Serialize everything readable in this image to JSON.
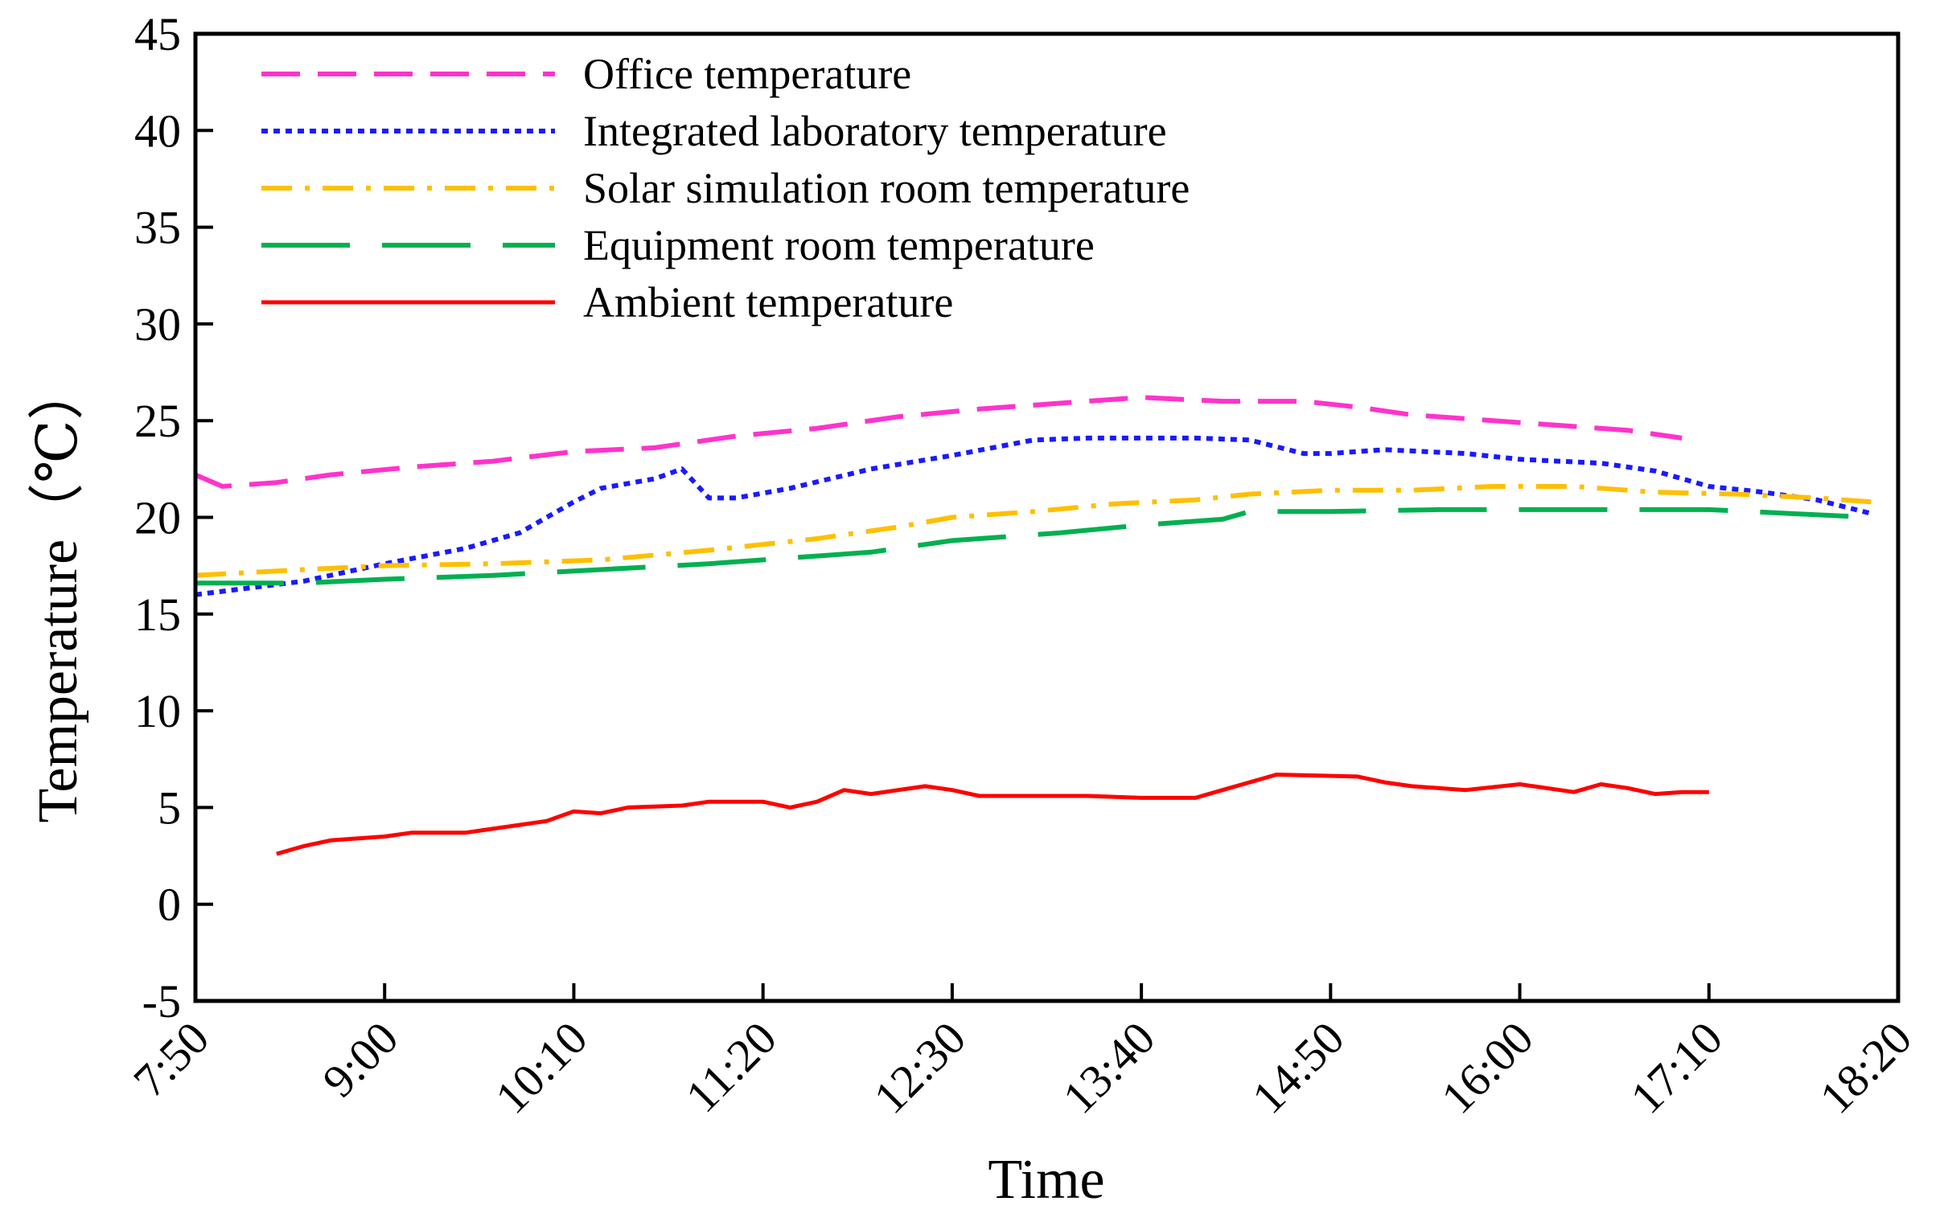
{
  "chart_data": {
    "type": "line",
    "title": "",
    "xlabel": "Time",
    "ylabel": "Temperature（℃）",
    "ylim": [
      -5,
      45
    ],
    "yticks": [
      -5,
      0,
      5,
      10,
      15,
      20,
      25,
      30,
      35,
      40,
      45
    ],
    "xlim_minutes": [
      470,
      1100
    ],
    "xticks": [
      "7:50",
      "9:00",
      "10:10",
      "11:20",
      "12:30",
      "13:40",
      "14:50",
      "16:00",
      "17:10",
      "18:20"
    ],
    "legend_position": "top-left",
    "series": [
      {
        "name": "Office temperature",
        "color": "#ff33cc",
        "style": "dashed",
        "points": [
          [
            "7:50",
            22.2
          ],
          [
            "8:00",
            21.6
          ],
          [
            "8:20",
            21.8
          ],
          [
            "8:40",
            22.2
          ],
          [
            "9:10",
            22.6
          ],
          [
            "9:40",
            22.9
          ],
          [
            "10:10",
            23.4
          ],
          [
            "10:40",
            23.6
          ],
          [
            "11:10",
            24.2
          ],
          [
            "11:40",
            24.6
          ],
          [
            "12:10",
            25.2
          ],
          [
            "12:40",
            25.6
          ],
          [
            "13:10",
            25.9
          ],
          [
            "13:40",
            26.2
          ],
          [
            "14:10",
            26.0
          ],
          [
            "14:40",
            26.0
          ],
          [
            "15:00",
            25.7
          ],
          [
            "15:20",
            25.3
          ],
          [
            "15:40",
            25.1
          ],
          [
            "16:00",
            24.9
          ],
          [
            "16:20",
            24.7
          ],
          [
            "16:40",
            24.5
          ],
          [
            "17:00",
            24.1
          ]
        ]
      },
      {
        "name": "Integrated laboratory temperature",
        "color": "#1a1aff",
        "style": "dotted",
        "points": [
          [
            "7:50",
            16.0
          ],
          [
            "8:30",
            16.7
          ],
          [
            "9:00",
            17.6
          ],
          [
            "9:30",
            18.4
          ],
          [
            "9:50",
            19.2
          ],
          [
            "10:10",
            20.8
          ],
          [
            "10:20",
            21.5
          ],
          [
            "10:40",
            22.0
          ],
          [
            "10:50",
            22.5
          ],
          [
            "11:00",
            21.0
          ],
          [
            "11:10",
            21.0
          ],
          [
            "11:30",
            21.5
          ],
          [
            "12:00",
            22.5
          ],
          [
            "12:30",
            23.2
          ],
          [
            "13:00",
            24.0
          ],
          [
            "13:20",
            24.1
          ],
          [
            "13:40",
            24.1
          ],
          [
            "14:00",
            24.1
          ],
          [
            "14:20",
            24.0
          ],
          [
            "14:40",
            23.3
          ],
          [
            "14:50",
            23.3
          ],
          [
            "15:10",
            23.5
          ],
          [
            "15:40",
            23.3
          ],
          [
            "16:00",
            23.0
          ],
          [
            "16:30",
            22.8
          ],
          [
            "16:50",
            22.4
          ],
          [
            "17:10",
            21.6
          ],
          [
            "17:30",
            21.3
          ],
          [
            "17:50",
            20.9
          ],
          [
            "18:10",
            20.2
          ]
        ]
      },
      {
        "name": "Solar simulation room temperature",
        "color": "#ffbf00",
        "style": "dashdot",
        "points": [
          [
            "7:50",
            17.0
          ],
          [
            "8:30",
            17.3
          ],
          [
            "9:00",
            17.5
          ],
          [
            "9:40",
            17.6
          ],
          [
            "10:20",
            17.8
          ],
          [
            "11:00",
            18.3
          ],
          [
            "11:40",
            18.9
          ],
          [
            "12:10",
            19.5
          ],
          [
            "12:30",
            20.0
          ],
          [
            "13:00",
            20.3
          ],
          [
            "13:30",
            20.7
          ],
          [
            "14:00",
            20.9
          ],
          [
            "14:20",
            21.2
          ],
          [
            "14:50",
            21.4
          ],
          [
            "15:20",
            21.4
          ],
          [
            "15:50",
            21.6
          ],
          [
            "16:20",
            21.6
          ],
          [
            "16:50",
            21.3
          ],
          [
            "17:20",
            21.2
          ],
          [
            "17:50",
            21.0
          ],
          [
            "18:10",
            20.8
          ]
        ]
      },
      {
        "name": "Equipment room temperature",
        "color": "#00b050",
        "style": "longdash",
        "points": [
          [
            "7:50",
            16.6
          ],
          [
            "8:30",
            16.6
          ],
          [
            "9:00",
            16.8
          ],
          [
            "9:40",
            17.0
          ],
          [
            "10:20",
            17.3
          ],
          [
            "11:00",
            17.6
          ],
          [
            "11:30",
            17.9
          ],
          [
            "12:00",
            18.2
          ],
          [
            "12:30",
            18.8
          ],
          [
            "13:10",
            19.2
          ],
          [
            "13:40",
            19.6
          ],
          [
            "14:10",
            19.9
          ],
          [
            "14:20",
            20.3
          ],
          [
            "14:50",
            20.3
          ],
          [
            "15:30",
            20.4
          ],
          [
            "16:10",
            20.4
          ],
          [
            "16:40",
            20.4
          ],
          [
            "17:10",
            20.4
          ],
          [
            "17:40",
            20.2
          ],
          [
            "18:10",
            20.0
          ]
        ]
      },
      {
        "name": "Ambient temperature",
        "color": "#ff0000",
        "style": "solid",
        "points": [
          [
            "8:20",
            2.6
          ],
          [
            "8:30",
            3.0
          ],
          [
            "8:40",
            3.3
          ],
          [
            "9:00",
            3.5
          ],
          [
            "9:10",
            3.7
          ],
          [
            "9:30",
            3.7
          ],
          [
            "9:40",
            3.9
          ],
          [
            "10:00",
            4.3
          ],
          [
            "10:10",
            4.8
          ],
          [
            "10:20",
            4.7
          ],
          [
            "10:30",
            5.0
          ],
          [
            "10:50",
            5.1
          ],
          [
            "11:00",
            5.3
          ],
          [
            "11:20",
            5.3
          ],
          [
            "11:30",
            5.0
          ],
          [
            "11:40",
            5.3
          ],
          [
            "11:50",
            5.9
          ],
          [
            "12:00",
            5.7
          ],
          [
            "12:10",
            5.9
          ],
          [
            "12:20",
            6.1
          ],
          [
            "12:30",
            5.9
          ],
          [
            "12:40",
            5.6
          ],
          [
            "13:00",
            5.6
          ],
          [
            "13:20",
            5.6
          ],
          [
            "13:40",
            5.5
          ],
          [
            "14:00",
            5.5
          ],
          [
            "14:10",
            5.9
          ],
          [
            "14:20",
            6.3
          ],
          [
            "14:30",
            6.7
          ],
          [
            "15:00",
            6.6
          ],
          [
            "15:10",
            6.3
          ],
          [
            "15:20",
            6.1
          ],
          [
            "15:40",
            5.9
          ],
          [
            "16:00",
            6.2
          ],
          [
            "16:10",
            6.0
          ],
          [
            "16:20",
            5.8
          ],
          [
            "16:30",
            6.2
          ],
          [
            "16:40",
            6.0
          ],
          [
            "16:50",
            5.7
          ],
          [
            "17:00",
            5.8
          ],
          [
            "17:10",
            5.8
          ]
        ]
      }
    ]
  }
}
